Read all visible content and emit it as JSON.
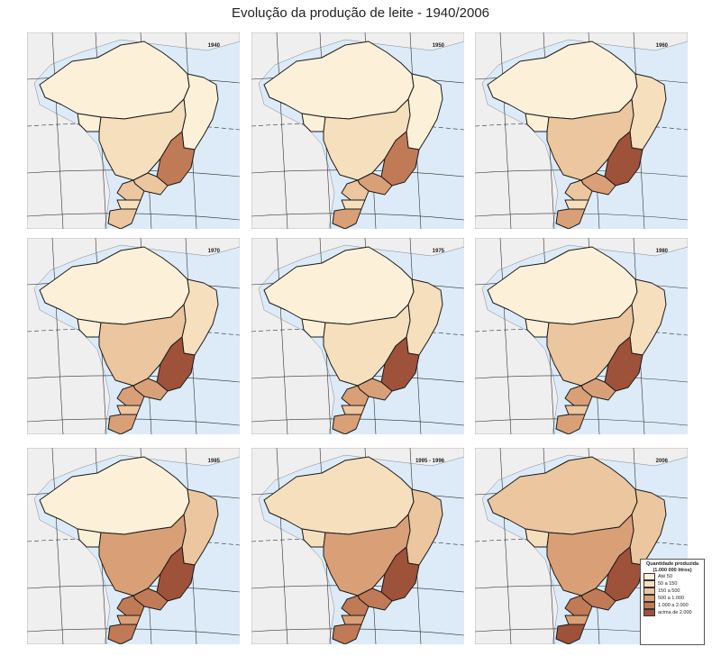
{
  "title": "Evolução da produção de leite - 1940/2006",
  "colors": {
    "ocean": "#dcebf7",
    "neighbor": "#efefef",
    "border": "#1a1a1a",
    "grid": "#333333",
    "classes": [
      "#fdf0d8",
      "#f6dfbd",
      "#ebc69e",
      "#d9a078",
      "#c07a56",
      "#9e5239"
    ]
  },
  "legend": {
    "title": "Quantidade produzida (1.000 000 litros)",
    "classes": [
      "Até 50",
      "50 a 150",
      "150 a 500",
      "500 a 1.000",
      "1.000 a 2.000",
      "acima de 2.000"
    ]
  },
  "maps": [
    {
      "label": "1940",
      "classes": {
        "N": 0,
        "NW": 0,
        "NE": 0,
        "CO": 1,
        "MG": 4,
        "SE": 2,
        "PR": 2,
        "SC": 1,
        "RS": 2
      }
    },
    {
      "label": "1950",
      "classes": {
        "N": 0,
        "NW": 0,
        "NE": 0,
        "CO": 1,
        "MG": 4,
        "SE": 3,
        "PR": 2,
        "SC": 1,
        "RS": 3
      }
    },
    {
      "label": "1960",
      "classes": {
        "N": 0,
        "NW": 0,
        "NE": 1,
        "CO": 2,
        "MG": 5,
        "SE": 3,
        "PR": 2,
        "SC": 1,
        "RS": 3
      }
    },
    {
      "label": "1970",
      "classes": {
        "N": 0,
        "NW": 0,
        "NE": 1,
        "CO": 2,
        "MG": 5,
        "SE": 3,
        "PR": 3,
        "SC": 2,
        "RS": 3
      }
    },
    {
      "label": "1975",
      "classes": {
        "N": 0,
        "NW": 0,
        "NE": 1,
        "CO": 1,
        "MG": 5,
        "SE": 3,
        "PR": 3,
        "SC": 2,
        "RS": 3
      }
    },
    {
      "label": "1980",
      "classes": {
        "N": 0,
        "NW": 0,
        "NE": 1,
        "CO": 2,
        "MG": 5,
        "SE": 3,
        "PR": 3,
        "SC": 2,
        "RS": 3
      }
    },
    {
      "label": "1985",
      "classes": {
        "N": 0,
        "NW": 0,
        "NE": 2,
        "CO": 3,
        "MG": 5,
        "SE": 4,
        "PR": 4,
        "SC": 3,
        "RS": 4
      }
    },
    {
      "label": "1995 - 1996",
      "classes": {
        "N": 1,
        "NW": 1,
        "NE": 2,
        "CO": 3,
        "MG": 5,
        "SE": 4,
        "PR": 4,
        "SC": 3,
        "RS": 4
      }
    },
    {
      "label": "2006",
      "classes": {
        "N": 2,
        "NW": 1,
        "NE": 2,
        "CO": 3,
        "MG": 5,
        "SE": 4,
        "PR": 4,
        "SC": 3,
        "RS": 5
      }
    }
  ]
}
